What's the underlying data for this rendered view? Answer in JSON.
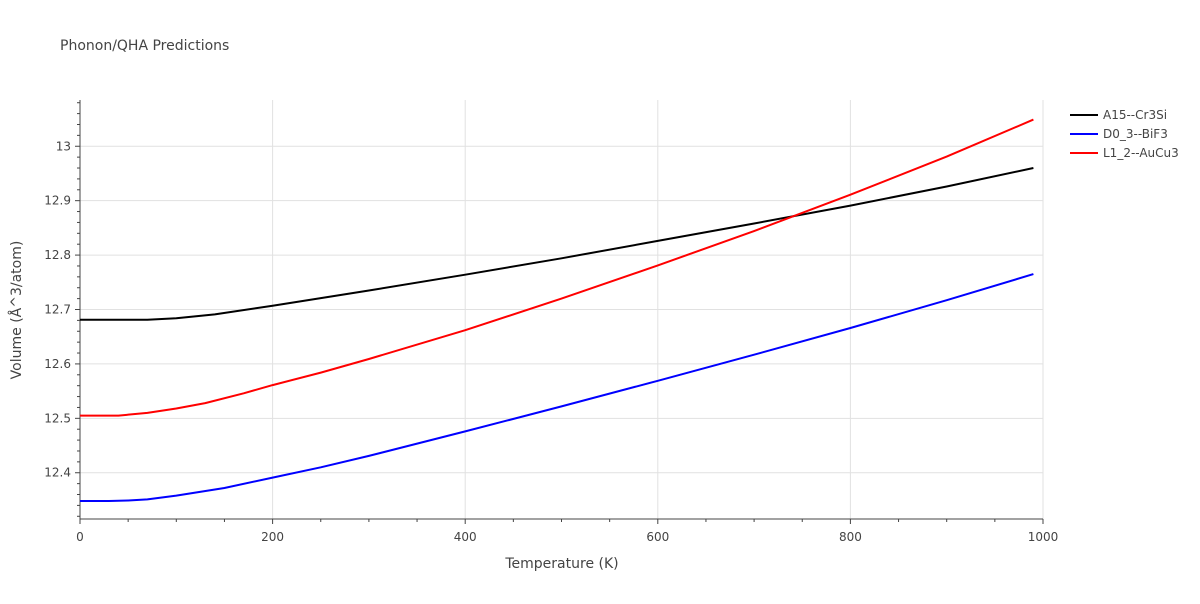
{
  "chart_data": {
    "type": "line",
    "title": "Phonon/QHA Predictions",
    "xlabel": "Temperature (K)",
    "ylabel": "Volume (Å^3/atom)",
    "xlim": [
      0,
      1000
    ],
    "ylim": [
      12.315,
      13.085
    ],
    "xticks": [
      0,
      200,
      400,
      600,
      800,
      1000
    ],
    "yticks": [
      12.4,
      12.5,
      12.6,
      12.7,
      12.8,
      12.9,
      13.0
    ],
    "ytick_labels": [
      "12.4",
      "12.5",
      "12.6",
      "12.7",
      "12.8",
      "12.9",
      "13"
    ],
    "grid": true,
    "legend_position": "top-right",
    "series": [
      {
        "name": "A15--Cr3Si",
        "color": "#000000",
        "x": [
          0,
          40,
          70,
          100,
          140,
          200,
          250,
          300,
          400,
          500,
          600,
          700,
          800,
          900,
          990
        ],
        "y": [
          12.681,
          12.681,
          12.681,
          12.684,
          12.691,
          12.707,
          12.721,
          12.735,
          12.764,
          12.794,
          12.826,
          12.858,
          12.891,
          12.926,
          12.96
        ]
      },
      {
        "name": "D0_3--BiF3",
        "color": "#0000ff",
        "x": [
          0,
          30,
          50,
          70,
          100,
          150,
          200,
          250,
          300,
          400,
          500,
          600,
          700,
          800,
          900,
          990
        ],
        "y": [
          12.348,
          12.348,
          12.349,
          12.351,
          12.358,
          12.372,
          12.391,
          12.41,
          12.431,
          12.476,
          12.522,
          12.569,
          12.617,
          12.666,
          12.717,
          12.765
        ]
      },
      {
        "name": "L1_2--AuCu3",
        "color": "#ff0000",
        "x": [
          0,
          40,
          70,
          100,
          130,
          170,
          200,
          250,
          300,
          400,
          500,
          600,
          700,
          800,
          900,
          990
        ],
        "y": [
          12.505,
          12.505,
          12.51,
          12.518,
          12.528,
          12.546,
          12.561,
          12.584,
          12.609,
          12.662,
          12.72,
          12.781,
          12.844,
          12.911,
          12.981,
          13.049
        ]
      }
    ]
  }
}
